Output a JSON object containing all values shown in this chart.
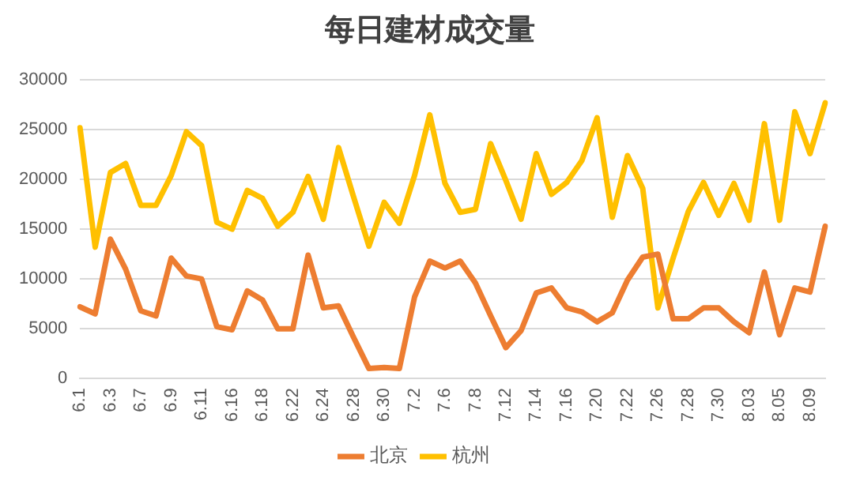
{
  "chart_data": {
    "type": "line",
    "title": "每日建材成交量",
    "categories": [
      "6.1",
      null,
      "6.3",
      null,
      "6.7",
      null,
      "6.9",
      null,
      "6.11",
      null,
      "6.16",
      null,
      "6.18",
      null,
      "6.22",
      null,
      "6.24",
      null,
      "6.28",
      null,
      "6.30",
      null,
      "7.2",
      null,
      "7.6",
      null,
      "7.8",
      null,
      "7.12",
      null,
      "7.14",
      null,
      "7.16",
      null,
      "7.20",
      null,
      "7.22",
      null,
      "7.26",
      null,
      "7.28",
      null,
      "7.30",
      null,
      "8.03",
      null,
      "8.05",
      null,
      "8.09",
      null
    ],
    "series": [
      {
        "name": "北京",
        "color": "#ed7d31",
        "values": [
          7200,
          6500,
          14000,
          11000,
          6800,
          6300,
          12100,
          10300,
          10000,
          5200,
          4900,
          8800,
          7900,
          5000,
          5000,
          12400,
          7100,
          7300,
          4100,
          1000,
          1100,
          1000,
          8200,
          11800,
          11100,
          11800,
          9600,
          6300,
          3100,
          4800,
          8600,
          9100,
          7100,
          6700,
          5700,
          6600,
          9900,
          12200,
          12500,
          6000,
          6000,
          7100,
          7100,
          5700,
          4600,
          10700,
          4400,
          9100,
          8700,
          15300
        ]
      },
      {
        "name": "杭州",
        "color": "#ffc000",
        "values": [
          25200,
          13200,
          20700,
          21600,
          17400,
          17400,
          20400,
          24800,
          23400,
          15700,
          15000,
          18900,
          18100,
          15300,
          16700,
          20300,
          16000,
          23200,
          18200,
          13300,
          17700,
          15600,
          20400,
          26500,
          19600,
          16700,
          17000,
          23600,
          19900,
          16000,
          22600,
          18500,
          19700,
          21900,
          26200,
          16200,
          22400,
          19100,
          7100,
          12100,
          16800,
          19700,
          16400,
          19600,
          15900,
          25600,
          15900,
          26800,
          22600,
          27700
        ]
      }
    ],
    "ylim": [
      0,
      30000
    ],
    "yticks": [
      0,
      5000,
      10000,
      15000,
      20000,
      25000,
      30000
    ],
    "grid": "y",
    "legend": "bottom",
    "marker": "none",
    "line_style": "solid"
  }
}
